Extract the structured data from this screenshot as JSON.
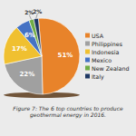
{
  "chart_data": {
    "type": "pie",
    "title": "Figure 7: The 6 top countries to produce geothermal energy in 2016.",
    "categories": [
      "USA",
      "Philippines",
      "Indonesia",
      "Mexico",
      "New Zealand",
      "Italy"
    ],
    "values": [
      51,
      22,
      17,
      6,
      2,
      2
    ],
    "value_labels": [
      "51%",
      "22%",
      "17%",
      "6%",
      "2%",
      "2%"
    ],
    "colors": [
      "#E8832A",
      "#A0A0A0",
      "#F0C030",
      "#4472C4",
      "#70AD47",
      "#1F3864"
    ],
    "data_labels": true,
    "legend": "right"
  }
}
